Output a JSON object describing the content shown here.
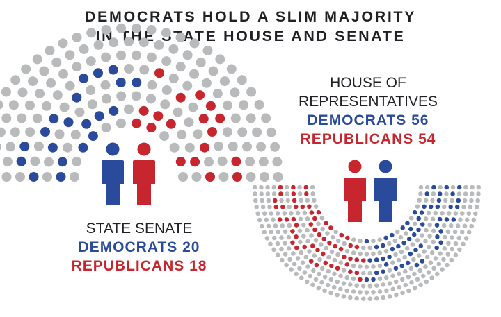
{
  "title": {
    "line1": "DEMOCRATS HOLD A SLIM MAJORITY",
    "line2": "IN THE STATE HOUSE AND SENATE"
  },
  "colors": {
    "democrat": "#2a4b9b",
    "republican": "#c8262f",
    "empty_seat": "#b9babc",
    "text": "#1f2124"
  },
  "icons": {
    "senate": [
      "democrat-person-icon",
      "republican-person-icon"
    ],
    "house": [
      "republican-person-icon",
      "democrat-person-icon"
    ]
  },
  "chart_data": [
    {
      "type": "parliament",
      "chamber": "STATE SENATE",
      "series": [
        {
          "name": "DEMOCRATS",
          "label": "DEMOCRATS 20",
          "value": 20
        },
        {
          "name": "REPUBLICANS",
          "label": "REPUBLICANS 18",
          "value": 18
        }
      ]
    },
    {
      "type": "parliament",
      "chamber": "HOUSE OF REPRESENTATIVES",
      "chamber_lines": [
        "HOUSE OF",
        "REPRESENTATIVES"
      ],
      "series": [
        {
          "name": "DEMOCRATS",
          "label": "DEMOCRATS 56",
          "value": 56
        },
        {
          "name": "REPUBLICANS",
          "label": "REPUBLICANS 54",
          "value": 54
        }
      ]
    }
  ]
}
